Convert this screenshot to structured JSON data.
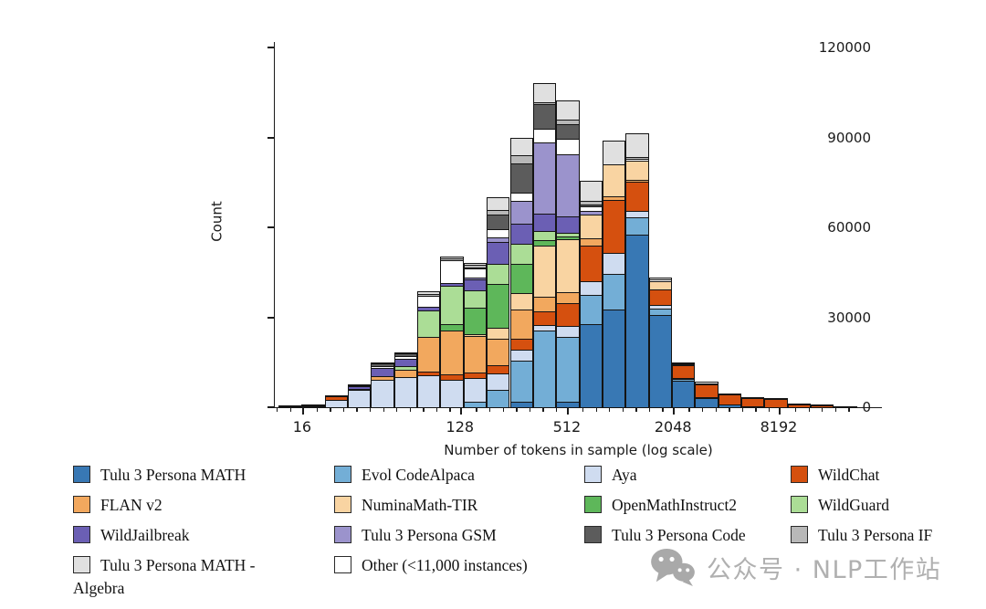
{
  "watermark": {
    "text": "公众号 · NLP工作站"
  },
  "chart_data": {
    "type": "bar",
    "subtype": "stacked-histogram",
    "title": "",
    "xlabel": "Number of tokens in sample (log scale)",
    "ylabel": "Count",
    "x_scale": "log",
    "ylim": [
      0,
      120000
    ],
    "grid": false,
    "legend_position": "bottom",
    "y_ticks": [
      0,
      30000,
      60000,
      90000,
      120000
    ],
    "x_ticks": [
      {
        "label": "16",
        "pct": 4.5
      },
      {
        "label": "128",
        "pct": 30.5
      },
      {
        "label": "512",
        "pct": 48.1
      },
      {
        "label": "2048",
        "pct": 65.6
      },
      {
        "label": "8192",
        "pct": 83.0
      }
    ],
    "bin_centers_tokens": [
      13,
      18,
      24,
      33,
      45,
      61,
      83,
      113,
      151,
      205,
      278,
      377,
      513,
      697,
      945,
      1283,
      1741,
      2363,
      3206,
      4351,
      5905,
      8013,
      10875,
      14758,
      20028
    ],
    "stack_order": [
      "Tulu 3 Persona MATH",
      "Evol CodeAlpaca",
      "Aya",
      "WildChat",
      "FLAN v2",
      "NuminaMath-TIR",
      "OpenMathInstruct2",
      "WildGuard",
      "WildJailbreak",
      "Tulu 3 Persona GSM",
      "Other (<11,000 instances)",
      "Tulu 3 Persona Code",
      "Tulu 3 Persona IF",
      "Tulu 3 Persona MATH - Algebra"
    ],
    "series": [
      {
        "name": "Tulu 3 Persona MATH",
        "color": "#3878b4",
        "values": [
          0,
          0,
          0,
          0,
          0,
          0,
          0,
          0,
          0,
          0,
          2000,
          0,
          2000,
          28000,
          33000,
          58000,
          31000,
          9000,
          3500,
          1200,
          300,
          0,
          0,
          0,
          0
        ]
      },
      {
        "name": "Evol CodeAlpaca",
        "color": "#73aed6",
        "values": [
          0,
          0,
          0,
          0,
          0,
          0,
          0,
          0,
          2000,
          6000,
          14000,
          26000,
          22000,
          10000,
          12000,
          6000,
          2500,
          1000,
          500,
          0,
          0,
          0,
          0,
          0,
          0
        ]
      },
      {
        "name": "Aya",
        "color": "#cfdcf0",
        "values": [
          200,
          600,
          2600,
          6000,
          9500,
          10500,
          11000,
          9500,
          8500,
          6000,
          4000,
          2000,
          4000,
          5000,
          7500,
          2500,
          1500,
          500,
          0,
          0,
          0,
          0,
          0,
          0,
          0
        ]
      },
      {
        "name": "WildChat",
        "color": "#d5500f",
        "values": [
          0,
          300,
          1600,
          500,
          0,
          0,
          1500,
          2000,
          2000,
          3000,
          4000,
          5000,
          8000,
          12000,
          18000,
          10000,
          5500,
          4500,
          4500,
          3800,
          3000,
          3000,
          1300,
          800,
          500
        ]
      },
      {
        "name": "FLAN v2",
        "color": "#f2a85e",
        "values": [
          0,
          0,
          0,
          0,
          1500,
          2500,
          12000,
          15000,
          12500,
          9000,
          10000,
          5000,
          4000,
          3000,
          1500,
          1000,
          0,
          0,
          0,
          0,
          0,
          0,
          0,
          0,
          0
        ]
      },
      {
        "name": "NuminaMath-TIR",
        "color": "#f9d4a2",
        "values": [
          0,
          0,
          0,
          0,
          0,
          0,
          0,
          0,
          1000,
          4000,
          6000,
          17500,
          18000,
          8000,
          11000,
          6500,
          3000,
          500,
          300,
          0,
          0,
          0,
          0,
          0,
          0
        ]
      },
      {
        "name": "OpenMathInstruct2",
        "color": "#5eb75a",
        "values": [
          0,
          0,
          0,
          0,
          0,
          0,
          0,
          2500,
          9000,
          15000,
          10000,
          2000,
          1000,
          0,
          0,
          0,
          0,
          0,
          0,
          0,
          0,
          0,
          0,
          0,
          0
        ]
      },
      {
        "name": "WildGuard",
        "color": "#abdd96",
        "values": [
          0,
          0,
          0,
          0,
          0,
          1500,
          9000,
          13000,
          6000,
          7000,
          7000,
          3500,
          1500,
          0,
          0,
          0,
          0,
          0,
          0,
          0,
          0,
          0,
          0,
          0,
          0
        ]
      },
      {
        "name": "WildJailbreak",
        "color": "#6b5fb4",
        "values": [
          0,
          0,
          0,
          1400,
          3000,
          3000,
          1500,
          1200,
          4000,
          7500,
          7000,
          6000,
          6000,
          0,
          0,
          0,
          0,
          0,
          0,
          0,
          0,
          0,
          0,
          0,
          0
        ]
      },
      {
        "name": "Tulu 3 Persona GSM",
        "color": "#9b93cc",
        "values": [
          0,
          0,
          0,
          0,
          0,
          0,
          0,
          0,
          1000,
          2000,
          8000,
          24000,
          21000,
          1500,
          0,
          0,
          0,
          0,
          0,
          0,
          0,
          0,
          0,
          0,
          0
        ]
      },
      {
        "name": "Other (<11,000 instances)",
        "color": "#ffffff",
        "values": [
          100,
          300,
          400,
          500,
          1000,
          1200,
          4000,
          8000,
          3500,
          3000,
          3000,
          5000,
          5500,
          2000,
          0,
          1000,
          1000,
          500,
          700,
          500,
          300,
          400,
          200,
          100,
          0
        ]
      },
      {
        "name": "Tulu 3 Persona Code",
        "color": "#5c5c5c",
        "values": [
          0,
          0,
          0,
          500,
          1000,
          1000,
          0,
          0,
          500,
          5000,
          10000,
          8500,
          5000,
          1000,
          0,
          0,
          0,
          0,
          0,
          0,
          0,
          0,
          0,
          0,
          0
        ]
      },
      {
        "name": "Tulu 3 Persona IF",
        "color": "#b8b8b8",
        "values": [
          0,
          0,
          0,
          0,
          500,
          800,
          1000,
          800,
          1000,
          2000,
          3000,
          1000,
          2000,
          1500,
          0,
          1000,
          0,
          0,
          0,
          0,
          0,
          0,
          0,
          0,
          0
        ]
      },
      {
        "name": "Tulu 3 Persona MATH - Algebra",
        "color": "#e0e0e0",
        "values": [
          0,
          0,
          0,
          0,
          0,
          0,
          1000,
          1000,
          1000,
          4500,
          6000,
          6500,
          6700,
          7000,
          8000,
          8000,
          1000,
          500,
          0,
          0,
          0,
          0,
          0,
          0,
          0
        ]
      }
    ],
    "legend_items": [
      {
        "label": "Tulu 3 Persona MATH",
        "color": "#3878b4",
        "col": 0,
        "row": 0
      },
      {
        "label": "Evol CodeAlpaca",
        "color": "#73aed6",
        "col": 1,
        "row": 0
      },
      {
        "label": "Aya",
        "color": "#cfdcf0",
        "col": 2,
        "row": 0
      },
      {
        "label": "WildChat",
        "color": "#d5500f",
        "col": 3,
        "row": 0
      },
      {
        "label": "FLAN v2",
        "color": "#f2a85e",
        "col": 0,
        "row": 1
      },
      {
        "label": "NuminaMath-TIR",
        "color": "#f9d4a2",
        "col": 1,
        "row": 1
      },
      {
        "label": "OpenMathInstruct2",
        "color": "#5eb75a",
        "col": 2,
        "row": 1
      },
      {
        "label": "WildGuard",
        "color": "#abdd96",
        "col": 3,
        "row": 1
      },
      {
        "label": "WildJailbreak",
        "color": "#6b5fb4",
        "col": 0,
        "row": 2
      },
      {
        "label": "Tulu 3 Persona GSM",
        "color": "#9b93cc",
        "col": 1,
        "row": 2
      },
      {
        "label": "Tulu 3 Persona Code",
        "color": "#5c5c5c",
        "col": 2,
        "row": 2
      },
      {
        "label": "Tulu 3 Persona IF",
        "color": "#b8b8b8",
        "col": 3,
        "row": 2
      },
      {
        "label": "Tulu 3 Persona MATH - Algebra",
        "color": "#e0e0e0",
        "col": 0,
        "row": 3
      },
      {
        "label": "Other (<11,000 instances)",
        "color": "#ffffff",
        "col": 1,
        "row": 3
      }
    ]
  }
}
